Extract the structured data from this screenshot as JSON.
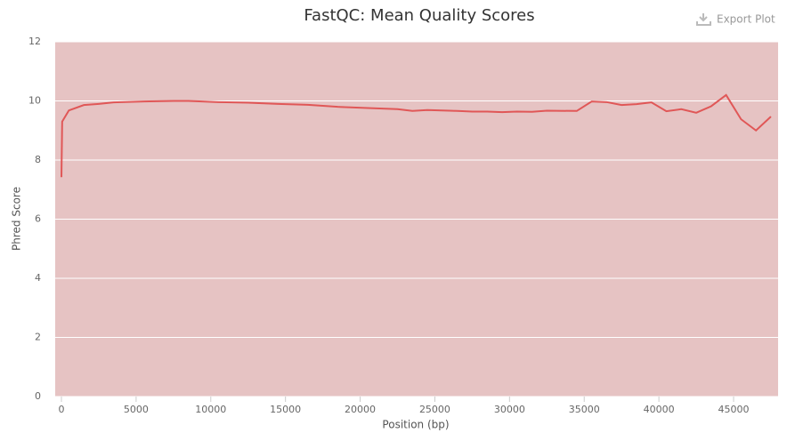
{
  "chart_data": {
    "type": "line",
    "title": "FastQC: Mean Quality Scores",
    "export_label": "Export Plot",
    "x_label": "Position (bp)",
    "y_label": "Phred Score",
    "x": [
      1,
      50,
      500,
      1500,
      2500,
      3500,
      5500,
      7500,
      8500,
      10500,
      12500,
      14500,
      16500,
      18500,
      20500,
      22500,
      23500,
      24500,
      26500,
      27500,
      28500,
      29500,
      30500,
      31500,
      32500,
      34500,
      35500,
      36500,
      37500,
      38500,
      39500,
      40500,
      41500,
      42500,
      43500,
      44500,
      45500,
      46500,
      47500
    ],
    "series": [
      {
        "color": "#e05757",
        "values": [
          7.42,
          9.3,
          9.68,
          9.86,
          9.9,
          9.95,
          9.98,
          10.0,
          10.0,
          9.96,
          9.94,
          9.9,
          9.87,
          9.8,
          9.76,
          9.72,
          9.66,
          9.69,
          9.66,
          9.64,
          9.64,
          9.62,
          9.64,
          9.63,
          9.67,
          9.66,
          9.98,
          9.96,
          9.86,
          9.89,
          9.95,
          9.65,
          9.72,
          9.6,
          9.82,
          10.2,
          9.38,
          9.0,
          9.47
        ]
      }
    ],
    "xlim": [
      -417,
      47980
    ],
    "xticks": [
      0,
      5000,
      10000,
      15000,
      20000,
      25000,
      30000,
      35000,
      40000,
      45000
    ],
    "ylim": [
      0,
      12
    ],
    "yticks": [
      0,
      2,
      4,
      6,
      8,
      10,
      12
    ],
    "grid": true,
    "plot_background": "#e6c3c3"
  }
}
